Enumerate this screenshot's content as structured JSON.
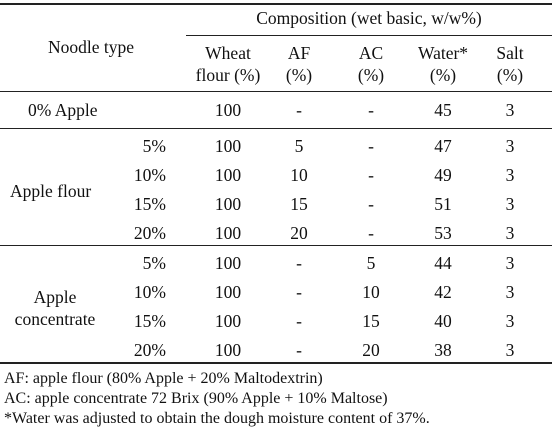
{
  "header": {
    "noodle_type": "Noodle type",
    "composition": "Composition (wet basic, w/w%)",
    "columns": [
      {
        "line1": "Wheat",
        "line2": "flour (%)"
      },
      {
        "line1": "AF",
        "line2": "(%)"
      },
      {
        "line1": "AC",
        "line2": "(%)"
      },
      {
        "line1": "Water*",
        "line2": "(%)"
      },
      {
        "line1": "Salt",
        "line2": "(%)"
      }
    ]
  },
  "groups": [
    {
      "label_lines": [
        "0% Apple"
      ],
      "rows": [
        {
          "level": "",
          "values": [
            "100",
            "-",
            "-",
            "45",
            "3"
          ]
        }
      ]
    },
    {
      "label_lines": [
        "Apple flour"
      ],
      "rows": [
        {
          "level": "5%",
          "values": [
            "100",
            "5",
            "-",
            "47",
            "3"
          ]
        },
        {
          "level": "10%",
          "values": [
            "100",
            "10",
            "-",
            "49",
            "3"
          ]
        },
        {
          "level": "15%",
          "values": [
            "100",
            "15",
            "-",
            "51",
            "3"
          ]
        },
        {
          "level": "20%",
          "values": [
            "100",
            "20",
            "-",
            "53",
            "3"
          ]
        }
      ]
    },
    {
      "label_lines": [
        "Apple",
        "concentrate"
      ],
      "rows": [
        {
          "level": "5%",
          "values": [
            "100",
            "-",
            "5",
            "44",
            "3"
          ]
        },
        {
          "level": "10%",
          "values": [
            "100",
            "-",
            "10",
            "42",
            "3"
          ]
        },
        {
          "level": "15%",
          "values": [
            "100",
            "-",
            "15",
            "40",
            "3"
          ]
        },
        {
          "level": "20%",
          "values": [
            "100",
            "-",
            "20",
            "38",
            "3"
          ]
        }
      ]
    }
  ],
  "footnotes": [
    "AF: apple flour (80% Apple + 20% Maltodextrin)",
    "AC: apple concentrate 72 Brix (90% Apple + 10% Maltose)",
    "*Water was adjusted to obtain the dough moisture content of 37%."
  ]
}
